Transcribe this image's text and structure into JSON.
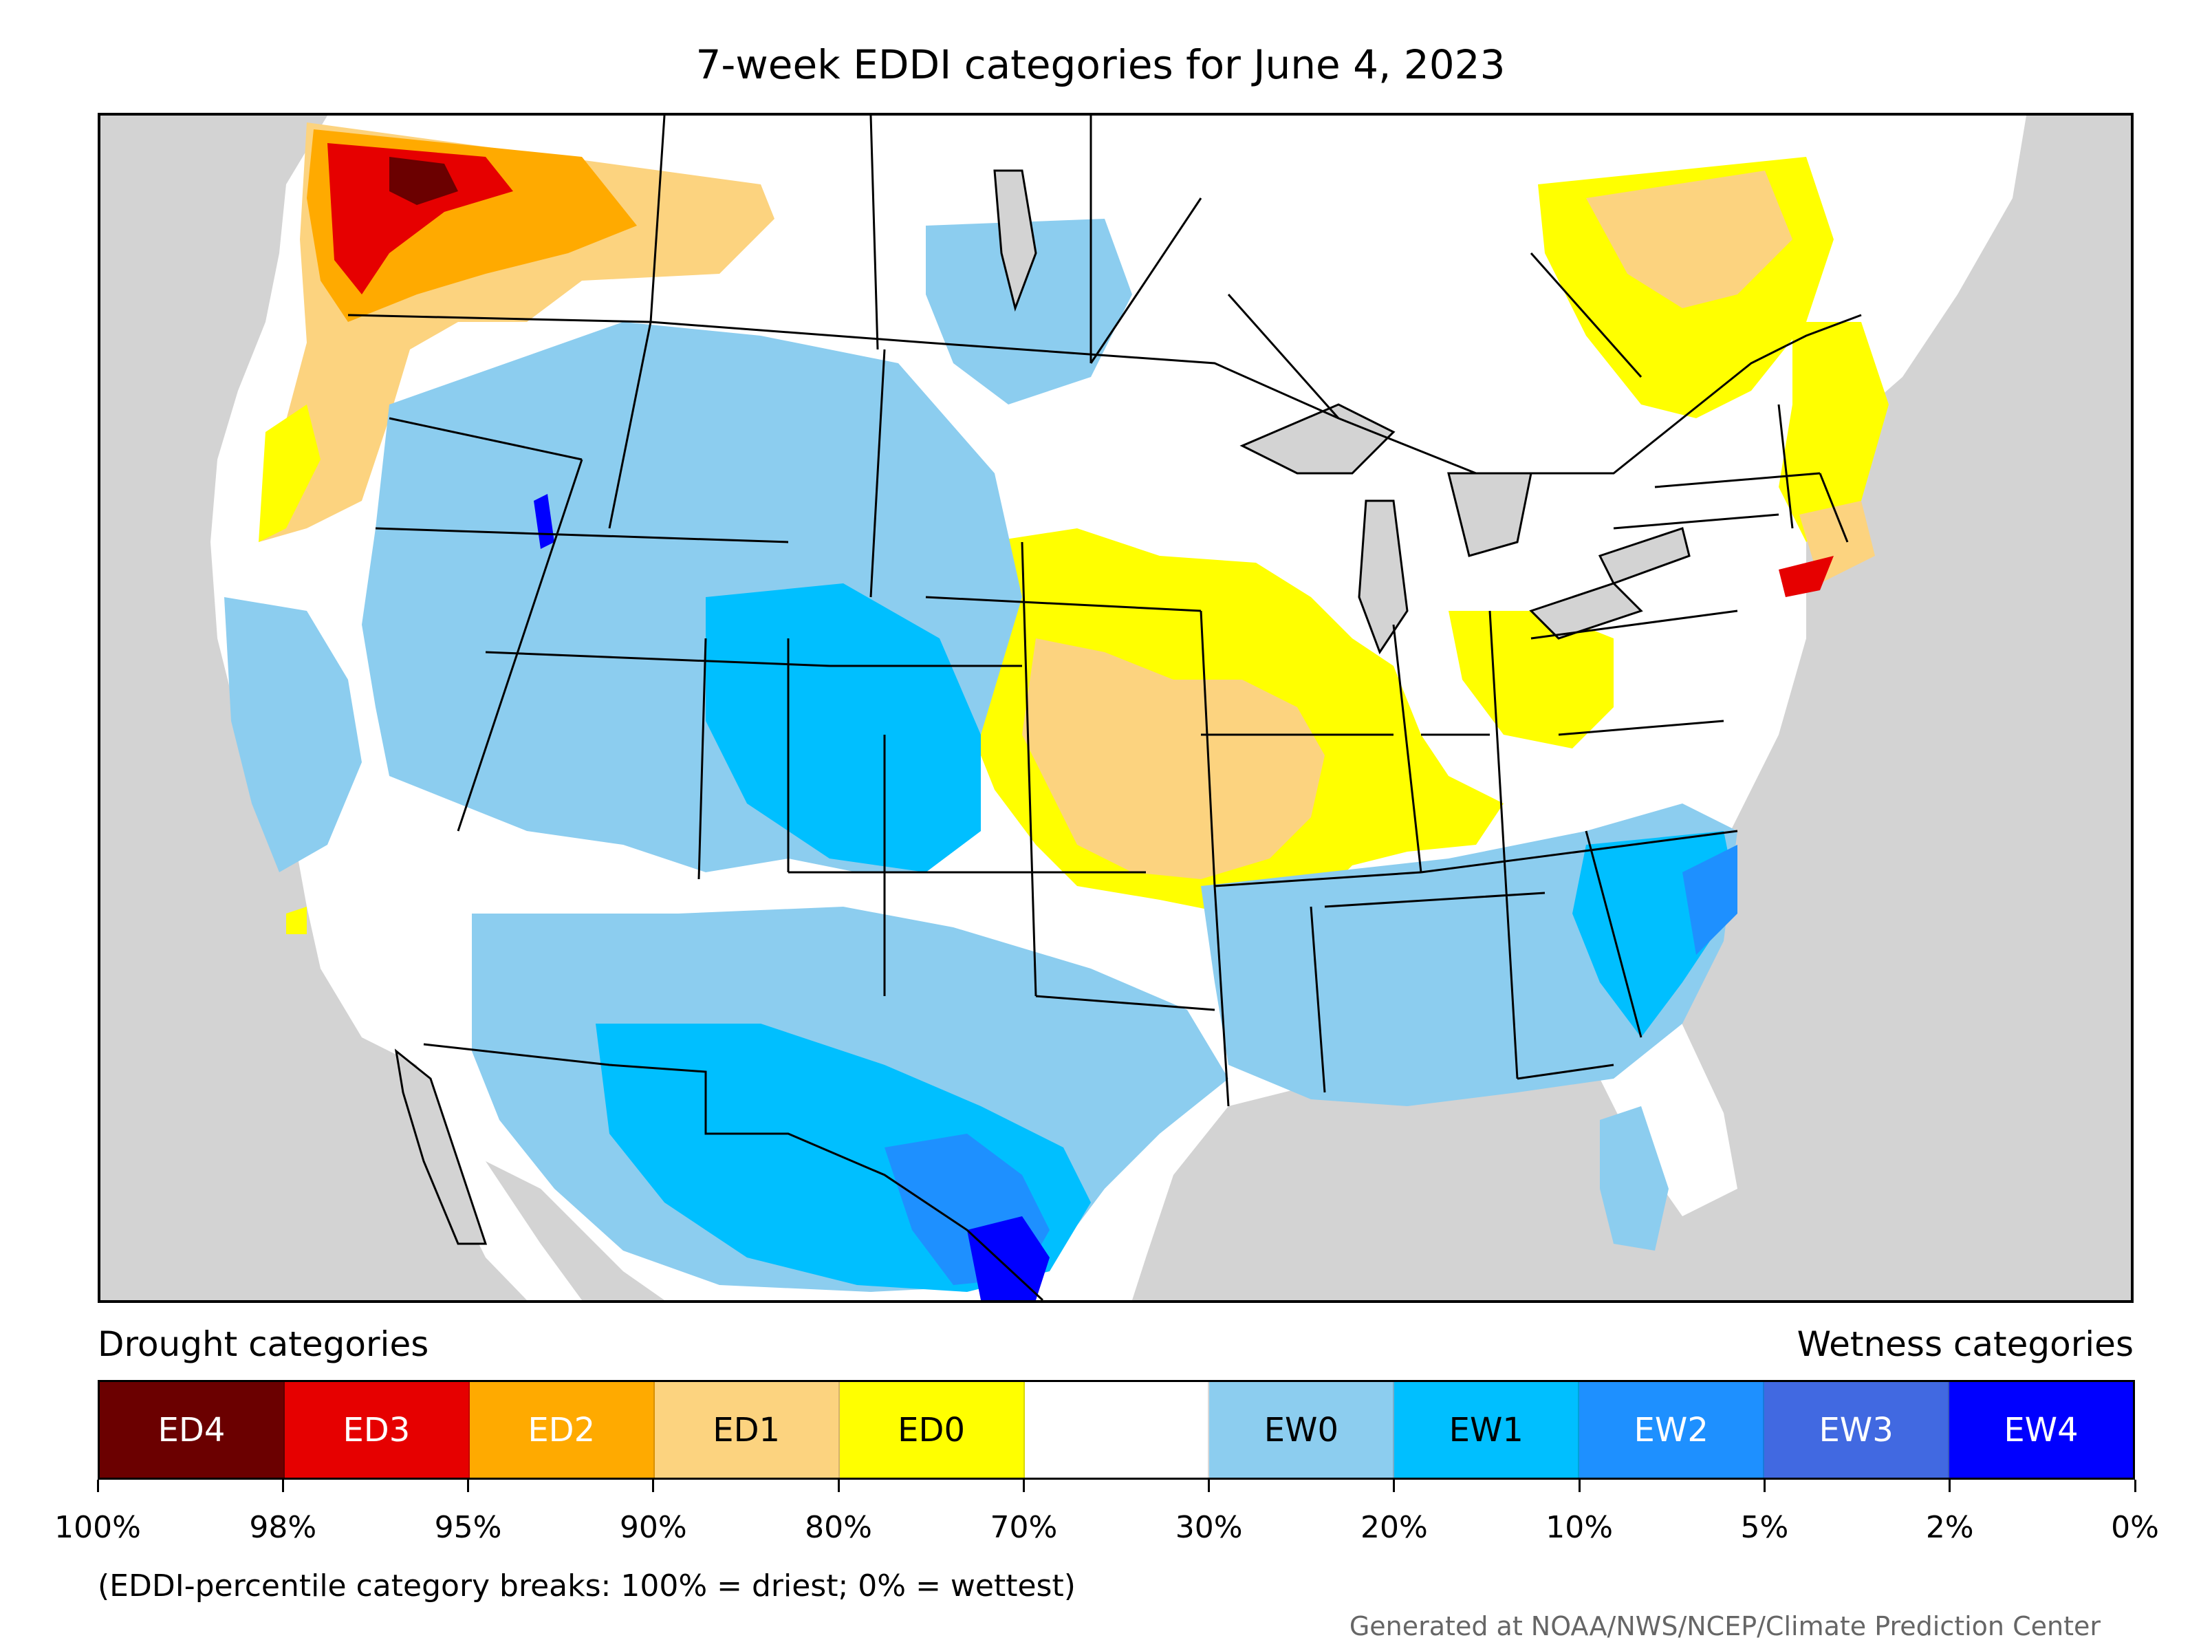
{
  "title": "7-week EDDI categories for June 4, 2023",
  "map": {
    "region": "Contiguous United States",
    "background_color": "#d3d3d3",
    "land_default_color": "#ffffff"
  },
  "legend": {
    "left_label": "Drought categories",
    "right_label": "Wetness categories",
    "categories": [
      {
        "label": "ED4",
        "color": "#6b0000",
        "text_color": "#ffffff"
      },
      {
        "label": "ED3",
        "color": "#e60000",
        "text_color": "#ffffff"
      },
      {
        "label": "ED2",
        "color": "#ffaa00",
        "text_color": "#ffffff"
      },
      {
        "label": "ED1",
        "color": "#fcd37f",
        "text_color": "#000000"
      },
      {
        "label": "ED0",
        "color": "#ffff00",
        "text_color": "#000000"
      },
      {
        "label": "",
        "color": "#ffffff",
        "text_color": "#000000"
      },
      {
        "label": "EW0",
        "color": "#8ccdef",
        "text_color": "#000000"
      },
      {
        "label": "EW1",
        "color": "#00bfff",
        "text_color": "#000000"
      },
      {
        "label": "EW2",
        "color": "#1e90ff",
        "text_color": "#ffffff"
      },
      {
        "label": "EW3",
        "color": "#4169e1",
        "text_color": "#ffffff"
      },
      {
        "label": "EW4",
        "color": "#0000ff",
        "text_color": "#ffffff"
      }
    ],
    "tick_labels": [
      "100%",
      "98%",
      "95%",
      "90%",
      "80%",
      "70%",
      "30%",
      "20%",
      "10%",
      "5%",
      "2%",
      "0%"
    ]
  },
  "note": "(EDDI-percentile category breaks: 100% = driest; 0% = wettest)",
  "credit": "Generated at NOAA/NWS/NCEP/Climate Prediction Center"
}
